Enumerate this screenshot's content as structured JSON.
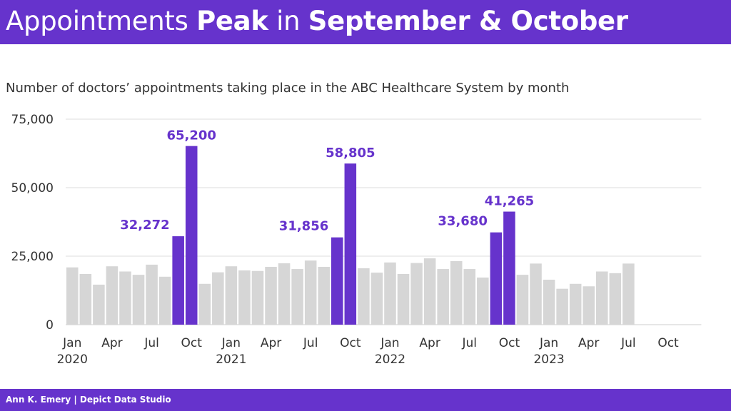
{
  "header": {
    "title_parts": [
      {
        "text": "Appointments ",
        "bold": false
      },
      {
        "text": "Peak",
        "bold": true
      },
      {
        "text": " in ",
        "bold": false
      },
      {
        "text": "September & October",
        "bold": true
      }
    ]
  },
  "footer": {
    "credit": "Ann K. Emery | Depict Data Studio"
  },
  "colors": {
    "accent": "#6633cc",
    "bar": "#d6d6d6",
    "grid": "#dddddd"
  },
  "chart_data": {
    "type": "bar",
    "title": "Appointments Peak in September & October",
    "subtitle": "Number of doctors’ appointments taking place in the ABC Healthcare System by month",
    "start_month": "2020-01",
    "end_month": "2023-07",
    "axis_end_month": "2023-12",
    "values": [
      20900,
      18500,
      14600,
      21300,
      19400,
      18200,
      21900,
      17500,
      32272,
      65200,
      14900,
      19100,
      21300,
      19800,
      19600,
      21100,
      22400,
      20300,
      23400,
      21100,
      31856,
      58805,
      20600,
      19000,
      22700,
      18500,
      22500,
      24200,
      20300,
      23200,
      20300,
      17200,
      33680,
      41265,
      18200,
      22300,
      16400,
      13100,
      14900,
      14000,
      19400,
      18800,
      22300
    ],
    "highlighted_months": [
      "Sep",
      "Oct"
    ],
    "data_labels": [
      {
        "month": "2020-09",
        "text": "32,272"
      },
      {
        "month": "2020-10",
        "text": "65,200"
      },
      {
        "month": "2021-09",
        "text": "31,856"
      },
      {
        "month": "2021-10",
        "text": "58,805"
      },
      {
        "month": "2022-09",
        "text": "33,680"
      },
      {
        "month": "2022-10",
        "text": "41,265"
      }
    ],
    "ylim": [
      0,
      75000
    ],
    "yticks": [
      {
        "v": 0,
        "label": "0"
      },
      {
        "v": 25000,
        "label": "25,000"
      },
      {
        "v": 50000,
        "label": "50,000"
      },
      {
        "v": 75000,
        "label": "75,000"
      }
    ],
    "xticks": [
      {
        "month": "2020-01",
        "label": "Jan",
        "year": "2020"
      },
      {
        "month": "2020-04",
        "label": "Apr"
      },
      {
        "month": "2020-07",
        "label": "Jul"
      },
      {
        "month": "2020-10",
        "label": "Oct"
      },
      {
        "month": "2021-01",
        "label": "Jan",
        "year": "2021"
      },
      {
        "month": "2021-04",
        "label": "Apr"
      },
      {
        "month": "2021-07",
        "label": "Jul"
      },
      {
        "month": "2021-10",
        "label": "Oct"
      },
      {
        "month": "2022-01",
        "label": "Jan",
        "year": "2022"
      },
      {
        "month": "2022-04",
        "label": "Apr"
      },
      {
        "month": "2022-07",
        "label": "Jul"
      },
      {
        "month": "2022-10",
        "label": "Oct"
      },
      {
        "month": "2023-01",
        "label": "Jan",
        "year": "2023"
      },
      {
        "month": "2023-04",
        "label": "Apr"
      },
      {
        "month": "2023-07",
        "label": "Jul"
      },
      {
        "month": "2023-10",
        "label": "Oct"
      }
    ],
    "grid": true,
    "legend": "none"
  }
}
